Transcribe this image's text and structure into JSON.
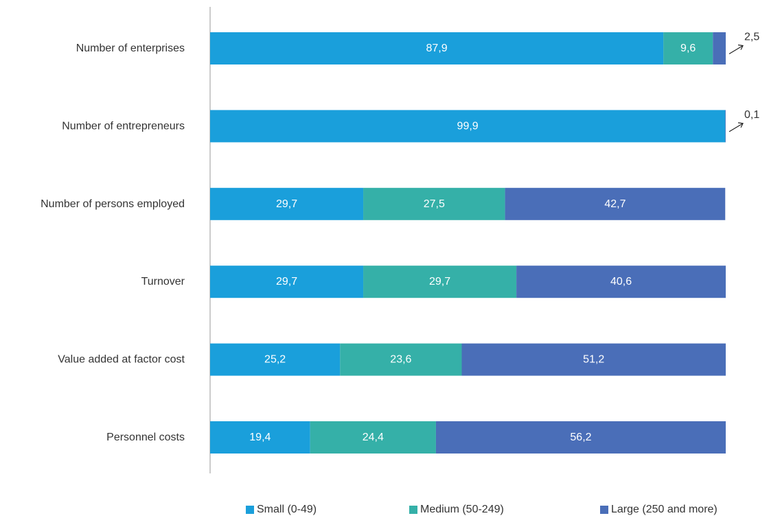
{
  "chart_data": {
    "type": "bar",
    "orientation": "horizontal",
    "stacked": true,
    "title": "",
    "xlabel": "",
    "ylabel": "",
    "xlim": [
      0,
      100
    ],
    "grid": false,
    "legend_position": "bottom",
    "categories": [
      "Number of enterprises",
      "Number of entrepreneurs",
      "Number of persons employed",
      "Turnover",
      "Value added at factor cost",
      "Personnel costs"
    ],
    "series": [
      {
        "name": "Small (0-49)",
        "color": "#1a9fdb",
        "values": [
          87.9,
          99.9,
          29.7,
          29.7,
          25.2,
          19.4
        ],
        "labels": [
          "87,9",
          "99,9",
          "29,7",
          "29,7",
          "25,2",
          "19,4"
        ]
      },
      {
        "name": "Medium (50-249)",
        "color": "#35b0a8",
        "values": [
          9.6,
          0,
          27.5,
          29.7,
          23.6,
          24.4
        ],
        "labels": [
          "9,6",
          "",
          "27,5",
          "29,7",
          "23,6",
          "24,4"
        ]
      },
      {
        "name": "Large (250 and more)",
        "color": "#4a6eb8",
        "values": [
          2.5,
          0.1,
          42.7,
          40.6,
          51.2,
          56.2
        ],
        "labels": [
          "2,5",
          "0,1",
          "42,7",
          "40,6",
          "51,2",
          "56,2"
        ]
      }
    ],
    "callouts": [
      {
        "category_index": 0,
        "text": "2,5"
      },
      {
        "category_index": 1,
        "text": "0,1"
      }
    ]
  }
}
